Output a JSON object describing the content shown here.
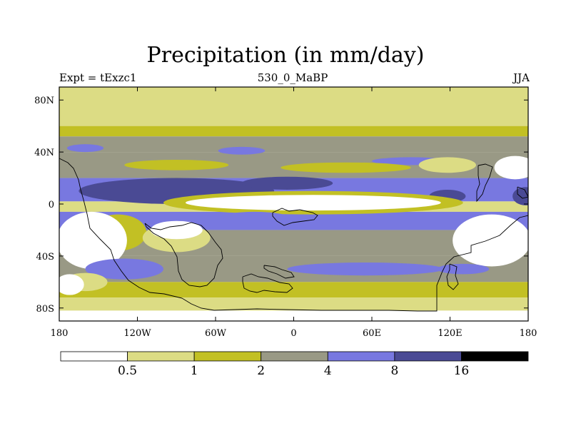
{
  "chart_data": {
    "type": "heatmap",
    "title": "Precipitation (in mm/day)",
    "subtitle_left": "Expt = tExzc1",
    "subtitle_center": "530_0_MaBP",
    "subtitle_right": "JJA",
    "x_ticks": [
      {
        "value": -180,
        "label": "180"
      },
      {
        "value": -120,
        "label": "120W"
      },
      {
        "value": -60,
        "label": "60W"
      },
      {
        "value": 0,
        "label": "0"
      },
      {
        "value": 60,
        "label": "60E"
      },
      {
        "value": 120,
        "label": "120E"
      },
      {
        "value": 180,
        "label": "180"
      }
    ],
    "y_ticks": [
      {
        "value": 80,
        "label": "80N"
      },
      {
        "value": 40,
        "label": "40N"
      },
      {
        "value": 0,
        "label": "0"
      },
      {
        "value": -40,
        "label": "40S"
      },
      {
        "value": -80,
        "label": "80S"
      }
    ],
    "xlim": [
      -180,
      180
    ],
    "ylim": [
      -90,
      90
    ],
    "colorbar": {
      "levels": [
        "0.5",
        "1",
        "2",
        "4",
        "8",
        "16"
      ],
      "colors": [
        "#ffffff",
        "#dcdc84",
        "#c2c024",
        "#999985",
        "#7878e0",
        "#4a4a94",
        "#000000"
      ]
    },
    "zonal_bands": [
      {
        "lat": [
          60,
          90
        ],
        "class": 1
      },
      {
        "lat": [
          52,
          60
        ],
        "class": 2
      },
      {
        "lat": [
          40,
          52
        ],
        "class": 3
      },
      {
        "lat": [
          20,
          40
        ],
        "class": 3
      },
      {
        "lat": [
          2,
          20
        ],
        "class": 4
      },
      {
        "lat": [
          -6,
          2
        ],
        "class": 1
      },
      {
        "lat": [
          -20,
          -6
        ],
        "class": 4
      },
      {
        "lat": [
          -40,
          -20
        ],
        "class": 3
      },
      {
        "lat": [
          -60,
          -40
        ],
        "class": 3
      },
      {
        "lat": [
          -72,
          -60
        ],
        "class": 2
      },
      {
        "lat": [
          -82,
          -72
        ],
        "class": 1
      },
      {
        "lat": [
          -90,
          -82
        ],
        "class": 0
      }
    ],
    "features": [
      {
        "class": 4,
        "lon": -160,
        "lat": 43,
        "rx": 14,
        "ry": 3
      },
      {
        "class": 4,
        "lon": -40,
        "lat": 41,
        "rx": 18,
        "ry": 3
      },
      {
        "class": 4,
        "lon": 90,
        "lat": 33,
        "rx": 30,
        "ry": 3
      },
      {
        "class": 2,
        "lon": -90,
        "lat": 30,
        "rx": 40,
        "ry": 4
      },
      {
        "class": 2,
        "lon": 40,
        "lat": 28,
        "rx": 50,
        "ry": 4
      },
      {
        "class": 1,
        "lon": 118,
        "lat": 30,
        "rx": 22,
        "ry": 6
      },
      {
        "class": 0,
        "lon": 170,
        "lat": 28,
        "rx": 16,
        "ry": 9
      },
      {
        "class": 5,
        "lon": -90,
        "lat": 10,
        "rx": 75,
        "ry": 10
      },
      {
        "class": 5,
        "lon": -5,
        "lat": 16,
        "rx": 35,
        "ry": 5
      },
      {
        "class": 5,
        "lon": 178,
        "lat": 6,
        "rx": 10,
        "ry": 7
      },
      {
        "class": 5,
        "lon": 118,
        "lat": 6,
        "rx": 14,
        "ry": 5
      },
      {
        "class": 2,
        "lon": 15,
        "lat": 1,
        "rx": 115,
        "ry": 9
      },
      {
        "class": 0,
        "lon": 15,
        "lat": 1,
        "rx": 98,
        "ry": 6
      },
      {
        "class": 2,
        "lon": -135,
        "lat": -22,
        "rx": 22,
        "ry": 14
      },
      {
        "class": 0,
        "lon": -155,
        "lat": -28,
        "rx": 27,
        "ry": 22
      },
      {
        "class": 1,
        "lon": -90,
        "lat": -26,
        "rx": 26,
        "ry": 11
      },
      {
        "class": 0,
        "lon": -90,
        "lat": -20,
        "rx": 20,
        "ry": 7
      },
      {
        "class": 0,
        "lon": 152,
        "lat": -28,
        "rx": 30,
        "ry": 20
      },
      {
        "class": 4,
        "lon": -130,
        "lat": -50,
        "rx": 30,
        "ry": 8
      },
      {
        "class": 4,
        "lon": 55,
        "lat": -50,
        "rx": 60,
        "ry": 5
      },
      {
        "class": 4,
        "lon": 130,
        "lat": -50,
        "rx": 20,
        "ry": 4
      },
      {
        "class": 4,
        "lon": -30,
        "lat": -10,
        "rx": 25,
        "ry": 4
      },
      {
        "class": 1,
        "lon": -160,
        "lat": -60,
        "rx": 17,
        "ry": 7
      },
      {
        "class": 0,
        "lon": -172,
        "lat": -62,
        "rx": 11,
        "ry": 8
      }
    ]
  }
}
